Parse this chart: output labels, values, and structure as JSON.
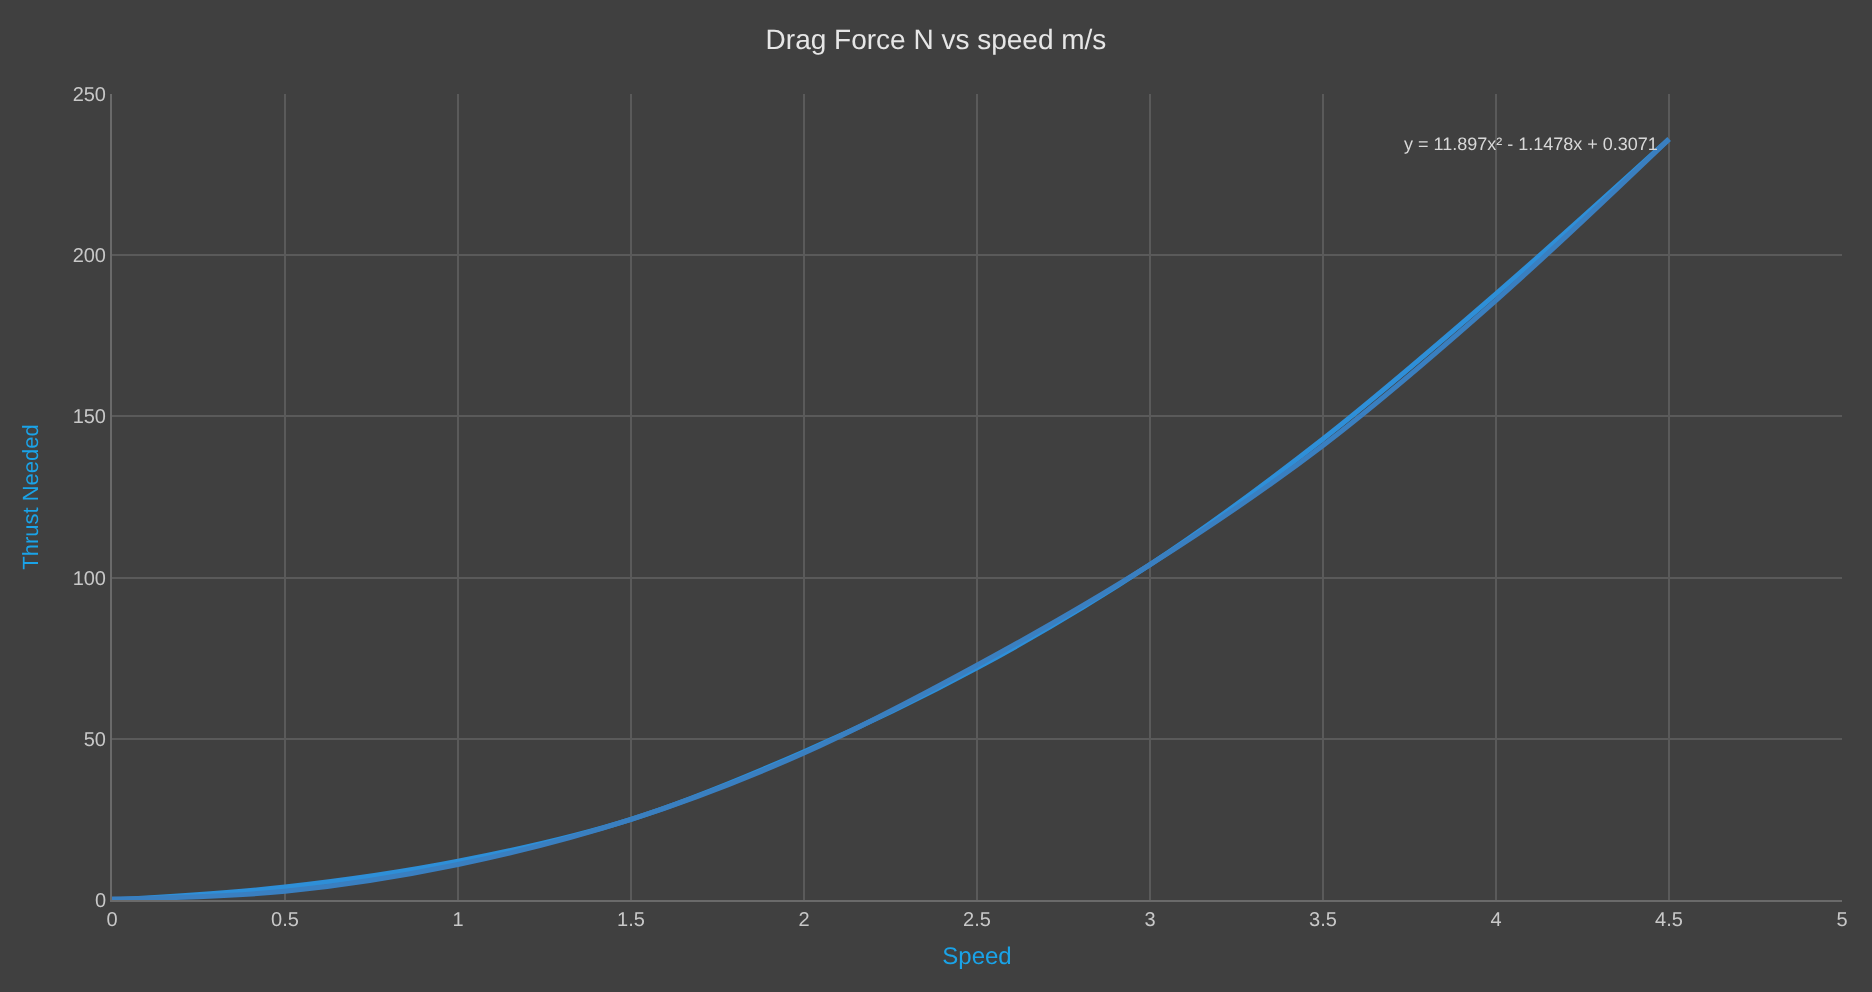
{
  "chart_data": {
    "type": "line",
    "title": "Drag Force N vs speed m/s",
    "xlabel": "Speed",
    "ylabel": "Thrust Needed",
    "x": [
      0,
      0.5,
      1,
      1.5,
      2,
      2.5,
      3,
      3.5,
      4,
      4.5
    ],
    "series": [
      {
        "color": "#2e8fd8",
        "values": [
          0,
          4,
          12,
          25,
          46,
          72,
          104,
          143,
          188,
          236
        ]
      },
      {
        "color": "#3a7fc0",
        "values": [
          0.3,
          2.7,
          11,
          25,
          45.6,
          72.8,
          104,
          141,
          186,
          236
        ]
      }
    ],
    "annotations": [
      "y = 11.897x² - 1.1478x + 0.3071"
    ],
    "xlim": [
      0,
      5
    ],
    "xticks": [
      0,
      0.5,
      1,
      1.5,
      2,
      2.5,
      3,
      3.5,
      4,
      4.5,
      5
    ],
    "ylim": [
      0,
      250
    ],
    "yticks": [
      0,
      50,
      100,
      150,
      200,
      250
    ],
    "grid": true,
    "marker": "none",
    "line_style": "solid"
  }
}
